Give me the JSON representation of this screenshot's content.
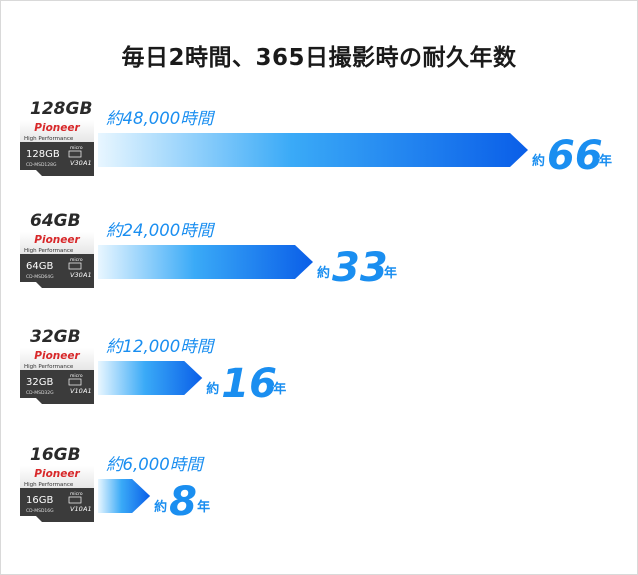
{
  "title": "毎日2時間、365日撮影時の耐久年数",
  "colors": {
    "bar_start": "#e8f6ff",
    "bar_mid": "#3aaaf7",
    "bar_end": "#0a5ee8",
    "value": "#1a8ef0",
    "card_top": "#f4f4f4",
    "card_bottom": "#3a3a3a",
    "brand": "#d8282a"
  },
  "cards": [
    {
      "capacity_label": "128GB",
      "brand": "Pioneer",
      "subtitle": "High Performance",
      "face_label": "128GB",
      "model": "CD-MSD128G",
      "speed_class": "V30",
      "app_class": "A1"
    },
    {
      "capacity_label": "64GB",
      "brand": "Pioneer",
      "subtitle": "High Performance",
      "face_label": "64GB",
      "model": "CD-MSD64G",
      "speed_class": "V30",
      "app_class": "A1"
    },
    {
      "capacity_label": "32GB",
      "brand": "Pioneer",
      "subtitle": "High Performance",
      "face_label": "32GB",
      "model": "CD-MSD32G",
      "speed_class": "V10",
      "app_class": "A1"
    },
    {
      "capacity_label": "16GB",
      "brand": "Pioneer",
      "subtitle": "High Performance",
      "face_label": "16GB",
      "model": "CD-MSD16G",
      "speed_class": "V10",
      "app_class": "A1"
    }
  ],
  "chart_data": {
    "type": "bar",
    "title": "毎日2時間、365日撮影時の耐久年数",
    "categories": [
      "128GB",
      "64GB",
      "32GB",
      "16GB"
    ],
    "hours_labels": [
      "約48,000時間",
      "約24,000時間",
      "約12,000時間",
      "約6,000時間"
    ],
    "hours": [
      48000,
      24000,
      12000,
      6000
    ],
    "values": [
      66,
      33,
      16,
      8
    ],
    "value_prefix": "約",
    "value_unit": "年",
    "orientation": "horizontal"
  }
}
